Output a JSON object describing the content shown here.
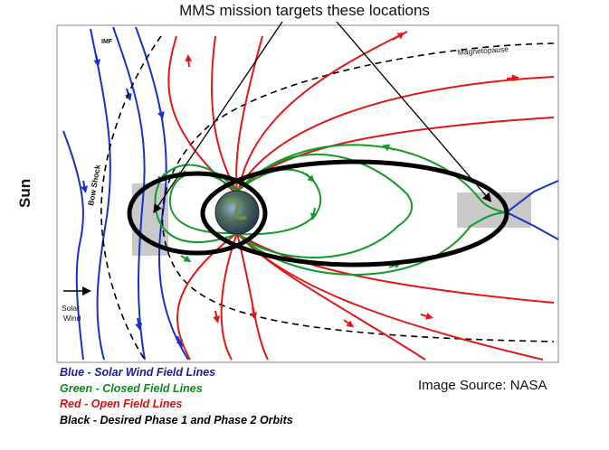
{
  "title": "MMS mission targets these locations",
  "sun_label": "Sun",
  "labels": {
    "imf": "IMF",
    "magnetopause": "Magnetopause",
    "bow_shock": "Bow Shock",
    "solar_wind": [
      "Solar",
      "Wind"
    ]
  },
  "legend": [
    {
      "text": "Blue - Solar Wind Field Lines",
      "color": "#1a1aa8"
    },
    {
      "text": "Green - Closed Field Lines",
      "color": "#0e8c1e"
    },
    {
      "text": "Red - Open Field Lines",
      "color": "#d41010"
    },
    {
      "text": "Black - Desired Phase 1 and Phase 2 Orbits",
      "color": "#000000"
    }
  ],
  "source": "Image Source: NASA",
  "colors": {
    "solar_wind": "#1533c4",
    "closed": "#129a2a",
    "open": "#e01818",
    "orbit": "#000000",
    "target_region": "#c9c9c9"
  }
}
